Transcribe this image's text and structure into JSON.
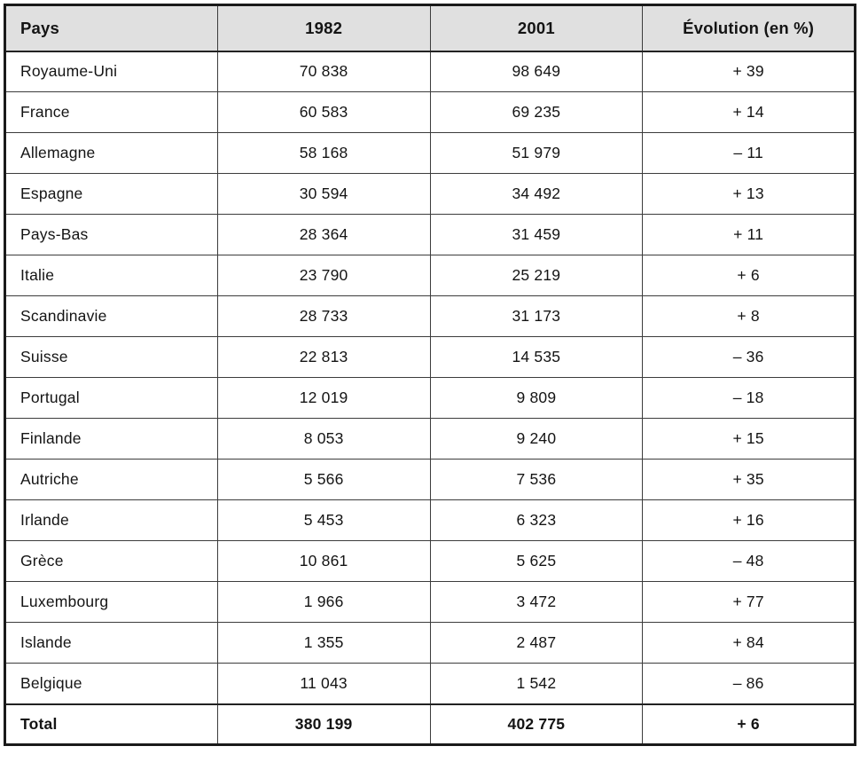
{
  "accent_colors": {
    "header_background": "#e0e0e0",
    "border": "#1a1a1a",
    "text": "#141414"
  },
  "table": {
    "headers": {
      "pays": "Pays",
      "y1982": "1982",
      "y2001": "2001",
      "evolution": "Évolution (en %)"
    },
    "rows": [
      {
        "pays": "Royaume-Uni",
        "y1982": "70 838",
        "y2001": "98 649",
        "evolution": "+ 39"
      },
      {
        "pays": "France",
        "y1982": "60 583",
        "y2001": "69 235",
        "evolution": "+ 14"
      },
      {
        "pays": "Allemagne",
        "y1982": "58 168",
        "y2001": "51 979",
        "evolution": "– 11"
      },
      {
        "pays": "Espagne",
        "y1982": "30 594",
        "y2001": "34 492",
        "evolution": "+ 13"
      },
      {
        "pays": "Pays-Bas",
        "y1982": "28 364",
        "y2001": "31 459",
        "evolution": "+ 11"
      },
      {
        "pays": "Italie",
        "y1982": "23 790",
        "y2001": "25 219",
        "evolution": "+ 6"
      },
      {
        "pays": "Scandinavie",
        "y1982": "28 733",
        "y2001": "31 173",
        "evolution": "+ 8"
      },
      {
        "pays": "Suisse",
        "y1982": "22 813",
        "y2001": "14 535",
        "evolution": "– 36"
      },
      {
        "pays": "Portugal",
        "y1982": "12 019",
        "y2001": "9 809",
        "evolution": "– 18"
      },
      {
        "pays": "Finlande",
        "y1982": "8 053",
        "y2001": "9 240",
        "evolution": "+ 15"
      },
      {
        "pays": "Autriche",
        "y1982": "5 566",
        "y2001": "7 536",
        "evolution": "+ 35"
      },
      {
        "pays": "Irlande",
        "y1982": "5 453",
        "y2001": "6 323",
        "evolution": "+ 16"
      },
      {
        "pays": "Grèce",
        "y1982": "10 861",
        "y2001": "5 625",
        "evolution": "– 48"
      },
      {
        "pays": "Luxembourg",
        "y1982": "1 966",
        "y2001": "3 472",
        "evolution": "+ 77"
      },
      {
        "pays": "Islande",
        "y1982": "1 355",
        "y2001": "2 487",
        "evolution": "+ 84"
      },
      {
        "pays": "Belgique",
        "y1982": "11 043",
        "y2001": "1 542",
        "evolution": "– 86"
      }
    ],
    "total": {
      "pays": "Total",
      "y1982": "380 199",
      "y2001": "402 775",
      "evolution": "+ 6"
    }
  },
  "chart_data": {
    "type": "table",
    "title": "",
    "columns": [
      "Pays",
      "1982",
      "2001",
      "Évolution (en %)"
    ],
    "categories": [
      "Royaume-Uni",
      "France",
      "Allemagne",
      "Espagne",
      "Pays-Bas",
      "Italie",
      "Scandinavie",
      "Suisse",
      "Portugal",
      "Finlande",
      "Autriche",
      "Irlande",
      "Grèce",
      "Luxembourg",
      "Islande",
      "Belgique",
      "Total"
    ],
    "series": [
      {
        "name": "1982",
        "values": [
          70838,
          60583,
          58168,
          30594,
          28364,
          23790,
          28733,
          22813,
          12019,
          8053,
          5566,
          5453,
          10861,
          1966,
          1355,
          11043,
          380199
        ]
      },
      {
        "name": "2001",
        "values": [
          98649,
          69235,
          51979,
          34492,
          31459,
          25219,
          31173,
          14535,
          9809,
          9240,
          7536,
          6323,
          5625,
          3472,
          2487,
          1542,
          402775
        ]
      },
      {
        "name": "Évolution (en %)",
        "values": [
          39,
          14,
          -11,
          13,
          11,
          6,
          8,
          -36,
          -18,
          15,
          35,
          16,
          -48,
          77,
          84,
          -86,
          6
        ]
      }
    ]
  }
}
